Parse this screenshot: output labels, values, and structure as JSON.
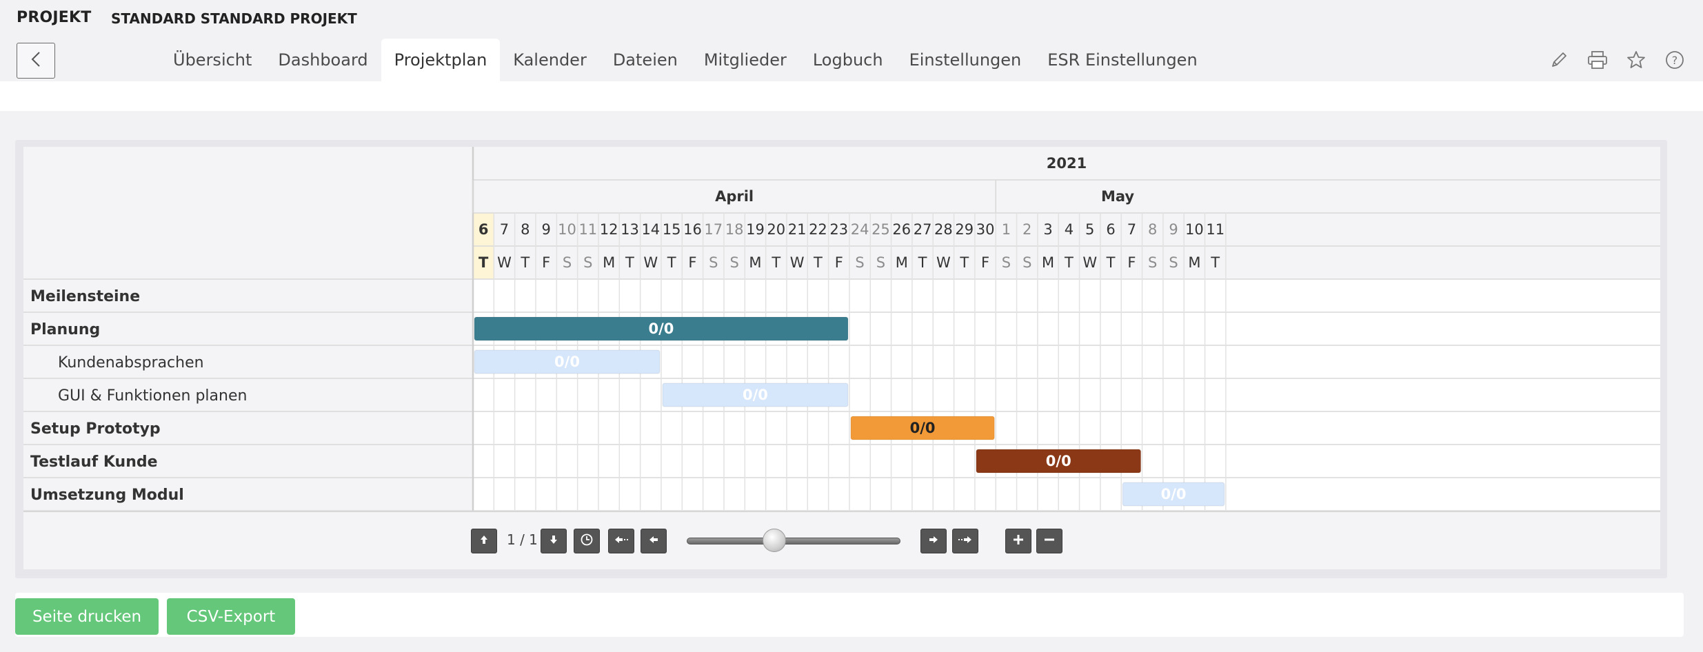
{
  "header": {
    "label": "PROJEKT",
    "project_name": "STANDARD STANDARD PROJEKT"
  },
  "tabs": [
    {
      "label": "Übersicht",
      "active": false
    },
    {
      "label": "Dashboard",
      "active": false
    },
    {
      "label": "Projektplan",
      "active": true
    },
    {
      "label": "Kalender",
      "active": false
    },
    {
      "label": "Dateien",
      "active": false
    },
    {
      "label": "Mitglieder",
      "active": false
    },
    {
      "label": "Logbuch",
      "active": false
    },
    {
      "label": "Einstellungen",
      "active": false
    },
    {
      "label": "ESR Einstellungen",
      "active": false
    }
  ],
  "tools": [
    {
      "icon": "pencil-icon"
    },
    {
      "icon": "printer-icon"
    },
    {
      "icon": "star-icon"
    },
    {
      "icon": "help-icon"
    }
  ],
  "gantt": {
    "year": "2021",
    "months": [
      {
        "label": "April",
        "days": 25
      },
      {
        "label": "May",
        "days": 11
      }
    ],
    "days": [
      {
        "n": "6",
        "d": "T",
        "we": false,
        "today": true
      },
      {
        "n": "7",
        "d": "W",
        "we": false
      },
      {
        "n": "8",
        "d": "T",
        "we": false
      },
      {
        "n": "9",
        "d": "F",
        "we": false
      },
      {
        "n": "10",
        "d": "S",
        "we": true
      },
      {
        "n": "11",
        "d": "S",
        "we": true
      },
      {
        "n": "12",
        "d": "M",
        "we": false
      },
      {
        "n": "13",
        "d": "T",
        "we": false
      },
      {
        "n": "14",
        "d": "W",
        "we": false
      },
      {
        "n": "15",
        "d": "T",
        "we": false
      },
      {
        "n": "16",
        "d": "F",
        "we": false
      },
      {
        "n": "17",
        "d": "S",
        "we": true
      },
      {
        "n": "18",
        "d": "S",
        "we": true
      },
      {
        "n": "19",
        "d": "M",
        "we": false
      },
      {
        "n": "20",
        "d": "T",
        "we": false
      },
      {
        "n": "21",
        "d": "W",
        "we": false
      },
      {
        "n": "22",
        "d": "T",
        "we": false
      },
      {
        "n": "23",
        "d": "F",
        "we": false
      },
      {
        "n": "24",
        "d": "S",
        "we": true
      },
      {
        "n": "25",
        "d": "S",
        "we": true
      },
      {
        "n": "26",
        "d": "M",
        "we": false
      },
      {
        "n": "27",
        "d": "T",
        "we": false
      },
      {
        "n": "28",
        "d": "W",
        "we": false
      },
      {
        "n": "29",
        "d": "T",
        "we": false
      },
      {
        "n": "30",
        "d": "F",
        "we": false
      },
      {
        "n": "1",
        "d": "S",
        "we": true
      },
      {
        "n": "2",
        "d": "S",
        "we": true
      },
      {
        "n": "3",
        "d": "M",
        "we": false
      },
      {
        "n": "4",
        "d": "T",
        "we": false
      },
      {
        "n": "5",
        "d": "W",
        "we": false
      },
      {
        "n": "6",
        "d": "T",
        "we": false
      },
      {
        "n": "7",
        "d": "F",
        "we": false
      },
      {
        "n": "8",
        "d": "S",
        "we": true
      },
      {
        "n": "9",
        "d": "S",
        "we": true
      },
      {
        "n": "10",
        "d": "M",
        "we": false
      },
      {
        "n": "11",
        "d": "T",
        "we": false
      }
    ],
    "rows": [
      {
        "name": "Meilensteine",
        "bold": true,
        "sub": false,
        "bar": null
      },
      {
        "name": "Planung",
        "bold": true,
        "sub": false,
        "bar": {
          "start": "2021-04-06",
          "end": "2021-04-23",
          "color": "#3a7d8f",
          "text": "0/0",
          "textColor": "#ffffff"
        }
      },
      {
        "name": "Kundenabsprachen",
        "bold": false,
        "sub": true,
        "bar": {
          "start": "2021-04-06",
          "end": "2021-04-14",
          "color": "#d6e6fb",
          "text": "0/0",
          "textColor": "#ffffff"
        }
      },
      {
        "name": "GUI & Funktionen planen",
        "bold": false,
        "sub": true,
        "bar": {
          "start": "2021-04-15",
          "end": "2021-04-23",
          "color": "#d6e6fb",
          "text": "0/0",
          "textColor": "#ffffff"
        }
      },
      {
        "name": "Setup Prototyp",
        "bold": true,
        "sub": false,
        "bar": {
          "start": "2021-04-24",
          "end": "2021-04-30",
          "color": "#f29a37",
          "text": "0/0",
          "textColor": "#222222"
        }
      },
      {
        "name": "Testlauf Kunde",
        "bold": true,
        "sub": false,
        "bar": {
          "start": "2021-04-30",
          "end": "2021-05-07",
          "color": "#8a3816",
          "text": "0/0",
          "textColor": "#ffffff"
        }
      },
      {
        "name": "Umsetzung Modul",
        "bold": true,
        "sub": false,
        "bar": {
          "start": "2021-05-07",
          "end": "2021-05-11",
          "color": "#d6e6fb",
          "text": "0/0",
          "textColor": "#ffffff"
        }
      }
    ]
  },
  "controls": {
    "page_count": "1 / 1",
    "slider_value": 0.41
  },
  "actions": {
    "print_label": "Seite drucken",
    "csv_label": "CSV-Export"
  }
}
